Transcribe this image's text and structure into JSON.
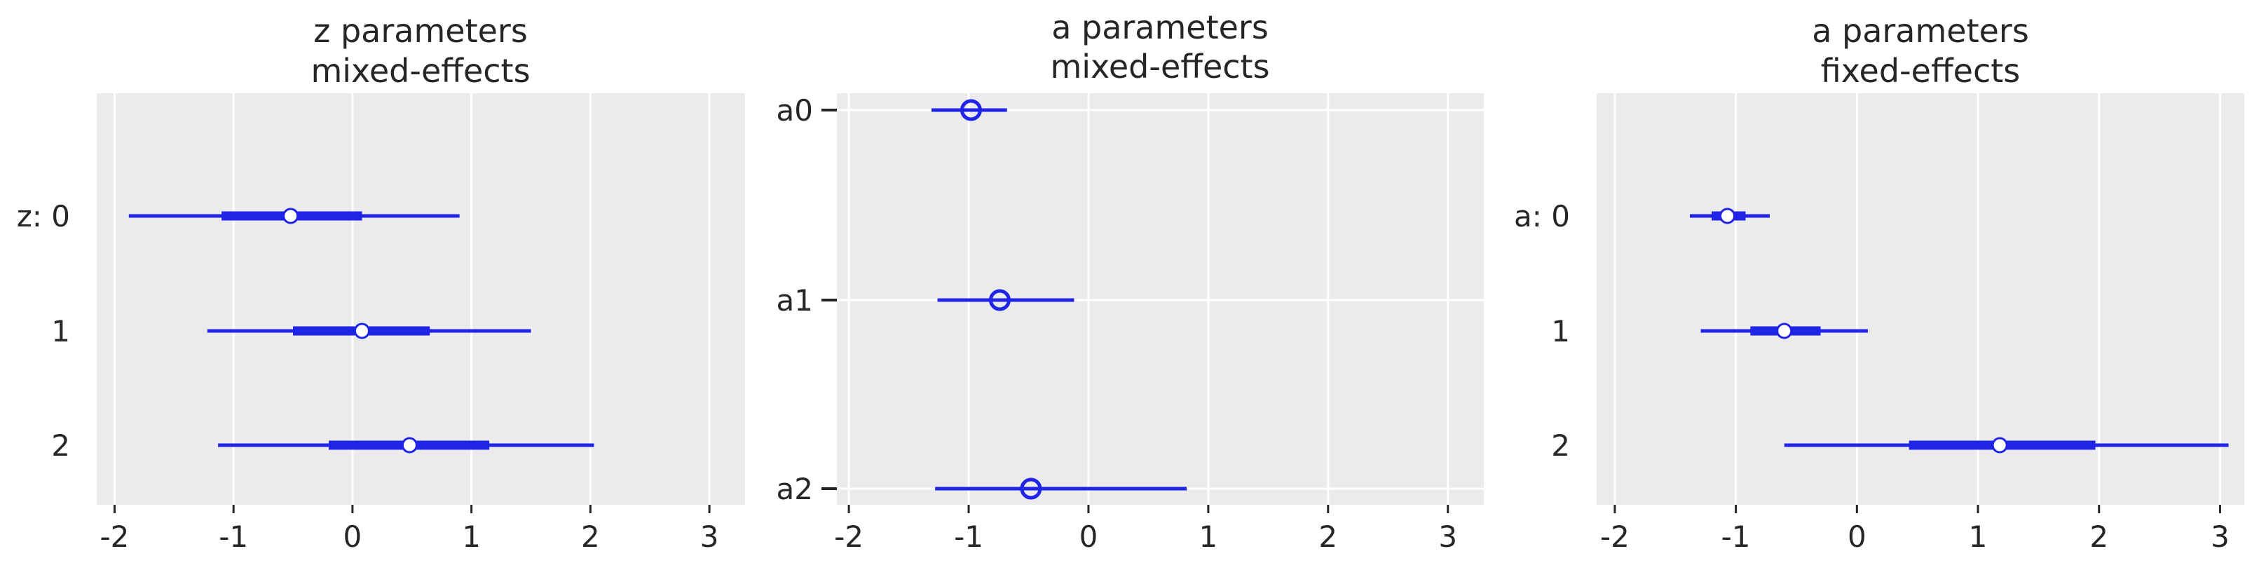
{
  "chart_data": [
    {
      "type": "forest",
      "title": [
        "z parameters",
        "mixed-effects"
      ],
      "xticks": [
        -2,
        -1,
        0,
        1,
        2,
        3
      ],
      "xlim": [
        -2.15,
        3.3
      ],
      "labels": [
        "z: 0",
        "1",
        "2"
      ],
      "grid": true,
      "marker": "filled",
      "series": [
        {
          "label": "z: 0",
          "mean": -0.52,
          "hdi_wide": [
            -1.88,
            0.9
          ],
          "hdi_narrow": [
            -1.1,
            0.08
          ]
        },
        {
          "label": "1",
          "mean": 0.08,
          "hdi_wide": [
            -1.22,
            1.5
          ],
          "hdi_narrow": [
            -0.5,
            0.65
          ]
        },
        {
          "label": "2",
          "mean": 0.48,
          "hdi_wide": [
            -1.13,
            2.03
          ],
          "hdi_narrow": [
            -0.2,
            1.15
          ]
        }
      ]
    },
    {
      "type": "forest",
      "title": [
        "a parameters",
        "mixed-effects"
      ],
      "xticks": [
        -2,
        -1,
        0,
        1,
        2,
        3
      ],
      "xlim": [
        -2.1,
        3.3
      ],
      "labels": [
        "a0",
        "a1",
        "a2"
      ],
      "grid": true,
      "marker": "hollow",
      "series": [
        {
          "label": "a0",
          "mean": -0.98,
          "hdi_wide": [
            -1.31,
            -0.68
          ]
        },
        {
          "label": "a1",
          "mean": -0.74,
          "hdi_wide": [
            -1.26,
            -0.12
          ]
        },
        {
          "label": "a2",
          "mean": -0.48,
          "hdi_wide": [
            -1.28,
            0.82
          ]
        }
      ]
    },
    {
      "type": "forest",
      "title": [
        "a parameters",
        "fixed-effects"
      ],
      "xticks": [
        -2,
        -1,
        0,
        1,
        2,
        3
      ],
      "xlim": [
        -2.15,
        3.2
      ],
      "labels": [
        "a: 0",
        "1",
        "2"
      ],
      "grid": true,
      "marker": "filled",
      "series": [
        {
          "label": "a: 0",
          "mean": -1.07,
          "hdi_wide": [
            -1.38,
            -0.72
          ],
          "hdi_narrow": [
            -1.2,
            -0.92
          ]
        },
        {
          "label": "1",
          "mean": -0.6,
          "hdi_wide": [
            -1.29,
            0.09
          ],
          "hdi_narrow": [
            -0.88,
            -0.3
          ]
        },
        {
          "label": "2",
          "mean": 1.18,
          "hdi_wide": [
            -0.6,
            3.07
          ],
          "hdi_narrow": [
            0.43,
            1.97
          ]
        }
      ]
    }
  ],
  "colors": {
    "series": "#1f24e6",
    "panel_bg": "#ebebeb",
    "grid": "#ffffff",
    "text": "#262626"
  }
}
